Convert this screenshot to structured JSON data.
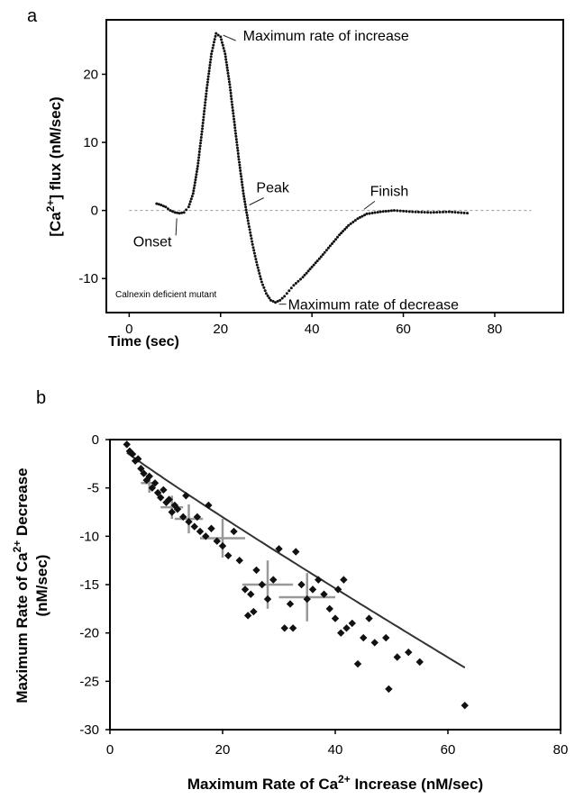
{
  "chart_data": [
    {
      "panel_label": "a",
      "type": "scatter",
      "xlabel": "Time (sec)",
      "ylabel_parts": [
        "[Ca",
        "2+",
        "] flux (nM/sec)"
      ],
      "xlim": [
        -5,
        95
      ],
      "ylim": [
        -15,
        28
      ],
      "xticks": [
        0,
        20,
        40,
        60,
        80
      ],
      "yticks": [
        -10,
        0,
        10,
        20
      ],
      "grid": false,
      "reference_line": {
        "y": 0,
        "style": "dashed"
      },
      "inset_note": "Calnexin deficient mutant",
      "annotations": [
        {
          "text": "Maximum rate of increase",
          "x": 19,
          "y": 26
        },
        {
          "text": "Peak",
          "x": 25.5,
          "y": 0
        },
        {
          "text": "Onset",
          "x": 11,
          "y": -0.5
        },
        {
          "text": "Finish",
          "x": 51,
          "y": -0.5
        },
        {
          "text": "Maximum rate of decrease",
          "x": 32,
          "y": -13.5
        }
      ],
      "trace_points": [
        [
          6,
          1.0
        ],
        [
          7,
          0.8
        ],
        [
          8,
          0.5
        ],
        [
          9,
          0.0
        ],
        [
          10,
          -0.3
        ],
        [
          11,
          -0.4
        ],
        [
          12,
          -0.3
        ],
        [
          13,
          0.5
        ],
        [
          14,
          2.5
        ],
        [
          15,
          6.5
        ],
        [
          16,
          12.0
        ],
        [
          17,
          18.0
        ],
        [
          18,
          23.0
        ],
        [
          19,
          26.0
        ],
        [
          20,
          25.5
        ],
        [
          21,
          23.0
        ],
        [
          22,
          18.5
        ],
        [
          23,
          13.0
        ],
        [
          24,
          7.5
        ],
        [
          25,
          2.5
        ],
        [
          26,
          -1.5
        ],
        [
          27,
          -5.0
        ],
        [
          28,
          -8.0
        ],
        [
          29,
          -10.5
        ],
        [
          30,
          -12.2
        ],
        [
          31,
          -13.2
        ],
        [
          32,
          -13.5
        ],
        [
          33,
          -13.2
        ],
        [
          34,
          -12.6
        ],
        [
          35,
          -11.8
        ],
        [
          36,
          -11.0
        ],
        [
          38,
          -9.8
        ],
        [
          40,
          -8.3
        ],
        [
          42,
          -6.8
        ],
        [
          44,
          -5.2
        ],
        [
          46,
          -3.6
        ],
        [
          48,
          -2.2
        ],
        [
          50,
          -1.2
        ],
        [
          52,
          -0.5
        ],
        [
          55,
          -0.2
        ],
        [
          58,
          0.0
        ],
        [
          62,
          -0.2
        ],
        [
          66,
          -0.3
        ],
        [
          70,
          -0.2
        ],
        [
          74,
          -0.4
        ]
      ]
    },
    {
      "panel_label": "b",
      "type": "scatter",
      "xlabel_parts": [
        "Maximum Rate of Ca",
        "2+",
        " Increase (nM/sec)"
      ],
      "ylabel_parts": [
        "Maximum Rate of Ca",
        "2+",
        " Decrease"
      ],
      "ylabel_line2": "(nM/sec)",
      "xlim": [
        0,
        80
      ],
      "ylim": [
        -30,
        0
      ],
      "xticks": [
        0,
        20,
        40,
        60,
        80
      ],
      "yticks": [
        0,
        -5,
        -10,
        -15,
        -20,
        -25,
        -30
      ],
      "grid": false,
      "series": [
        {
          "points": [
            [
              3,
              -0.5
            ],
            [
              3.5,
              -1.2
            ],
            [
              4,
              -1.5
            ],
            [
              4.5,
              -2.2
            ],
            [
              5,
              -2.0
            ],
            [
              5.5,
              -3.0
            ],
            [
              6,
              -3.5
            ],
            [
              6.5,
              -4.2
            ],
            [
              7,
              -3.8
            ],
            [
              7.5,
              -5.0
            ],
            [
              8,
              -4.5
            ],
            [
              8.5,
              -5.5
            ],
            [
              9,
              -6.0
            ],
            [
              9.5,
              -5.2
            ],
            [
              10,
              -6.5
            ],
            [
              10.5,
              -6.2
            ],
            [
              11,
              -7.5
            ],
            [
              11.5,
              -6.8
            ],
            [
              12,
              -7.2
            ],
            [
              13,
              -8.0
            ],
            [
              13.5,
              -5.8
            ],
            [
              14,
              -8.5
            ],
            [
              15,
              -9.0
            ],
            [
              15.5,
              -8.0
            ],
            [
              16,
              -9.5
            ],
            [
              17,
              -10.0
            ],
            [
              17.5,
              -6.8
            ],
            [
              18,
              -9.2
            ],
            [
              19,
              -10.5
            ],
            [
              20,
              -11.0
            ],
            [
              21,
              -12.0
            ],
            [
              22,
              -9.5
            ],
            [
              23,
              -12.5
            ],
            [
              24,
              -15.5
            ],
            [
              24.5,
              -18.2
            ],
            [
              25,
              -16.0
            ],
            [
              25.5,
              -17.8
            ],
            [
              26,
              -13.5
            ],
            [
              27,
              -15.0
            ],
            [
              28,
              -16.5
            ],
            [
              29,
              -14.5
            ],
            [
              30,
              -11.3
            ],
            [
              31,
              -19.5
            ],
            [
              32,
              -17.0
            ],
            [
              32.5,
              -19.5
            ],
            [
              33,
              -11.6
            ],
            [
              34,
              -15.0
            ],
            [
              35,
              -16.5
            ],
            [
              36,
              -15.5
            ],
            [
              37,
              -14.5
            ],
            [
              38,
              -16.0
            ],
            [
              39,
              -17.5
            ],
            [
              40,
              -18.5
            ],
            [
              40.5,
              -15.5
            ],
            [
              41,
              -20.0
            ],
            [
              41.5,
              -14.5
            ],
            [
              42,
              -19.5
            ],
            [
              43,
              -19.0
            ],
            [
              44,
              -23.2
            ],
            [
              45,
              -20.5
            ],
            [
              46,
              -18.5
            ],
            [
              47,
              -21.0
            ],
            [
              49,
              -20.5
            ],
            [
              49.5,
              -25.8
            ],
            [
              51,
              -22.5
            ],
            [
              53,
              -22.0
            ],
            [
              55,
              -23.0
            ],
            [
              63,
              -27.5
            ]
          ]
        },
        {
          "error_crosses": [
            {
              "x": 7,
              "y": -4.5,
              "xerr": 1.5,
              "yerr": 1.0
            },
            {
              "x": 11,
              "y": -7.0,
              "xerr": 2.0,
              "yerr": 1.2
            },
            {
              "x": 14,
              "y": -8.2,
              "xerr": 2.5,
              "yerr": 1.5
            },
            {
              "x": 20,
              "y": -10.2,
              "xerr": 4.0,
              "yerr": 2.0
            },
            {
              "x": 28,
              "y": -15.0,
              "xerr": 4.5,
              "yerr": 2.5
            },
            {
              "x": 35,
              "y": -16.3,
              "xerr": 5.0,
              "yerr": 2.5
            }
          ]
        }
      ],
      "fit_curve": {
        "type": "power",
        "a": -0.48,
        "b": 0.94,
        "xrange": [
          3,
          63
        ]
      }
    }
  ],
  "colors": {
    "points": "#111111",
    "cross": "#999999",
    "axes": "#000000",
    "dashed_line": "#9a9a9a"
  }
}
